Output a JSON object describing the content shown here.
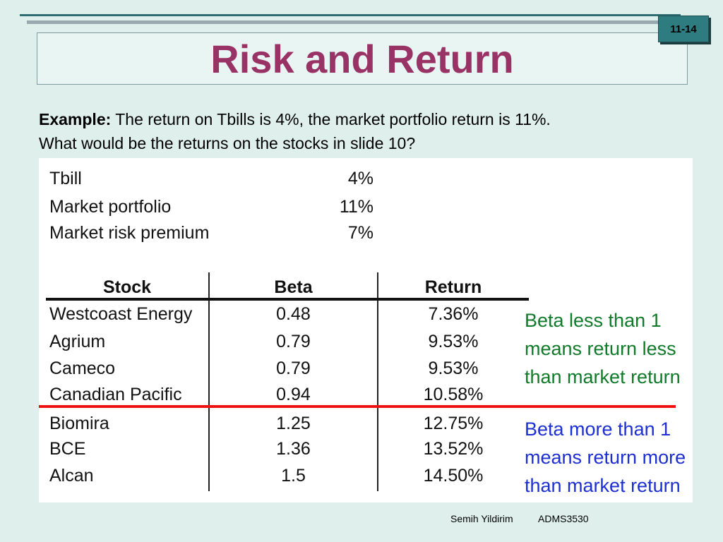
{
  "slide": {
    "number": "11-14",
    "title": "Risk and Return"
  },
  "intro": {
    "lead": "Example:",
    "line1": " The return on Tbills is 4%, the market portfolio return is 11%.",
    "line2": "What would be the returns on the stocks in slide 10?"
  },
  "assumptions": [
    {
      "label": "Tbill",
      "value": "4%"
    },
    {
      "label": "Market portfolio",
      "value": "11%"
    },
    {
      "label": "Market risk premium",
      "value": "7%"
    }
  ],
  "table": {
    "headers": [
      "Stock",
      "Beta",
      "Return"
    ],
    "rows": [
      {
        "stock": "Westcoast Energy",
        "beta": "0.48",
        "ret": "7.36%"
      },
      {
        "stock": "Agrium",
        "beta": "0.79",
        "ret": "9.53%"
      },
      {
        "stock": "Cameco",
        "beta": "0.79",
        "ret": "9.53%"
      },
      {
        "stock": "Canadian Pacific",
        "beta": "0.94",
        "ret": "10.58%"
      },
      {
        "stock": "Biomira",
        "beta": "1.25",
        "ret": "12.75%"
      },
      {
        "stock": "BCE",
        "beta": "1.36",
        "ret": "13.52%"
      },
      {
        "stock": "Alcan",
        "beta": "1.5",
        "ret": "14.50%"
      }
    ]
  },
  "notes": {
    "less": [
      "Beta less than 1",
      "means return less",
      "than market return"
    ],
    "more": [
      "Beta more than 1",
      "means return more",
      "than market return"
    ]
  },
  "colors": {
    "title": "#993366",
    "note_less": "#117a2a",
    "note_more": "#1d2fd0",
    "divider": "#ee1111"
  },
  "footer": {
    "author": "Semih Yildirim",
    "course": "ADMS3530"
  }
}
